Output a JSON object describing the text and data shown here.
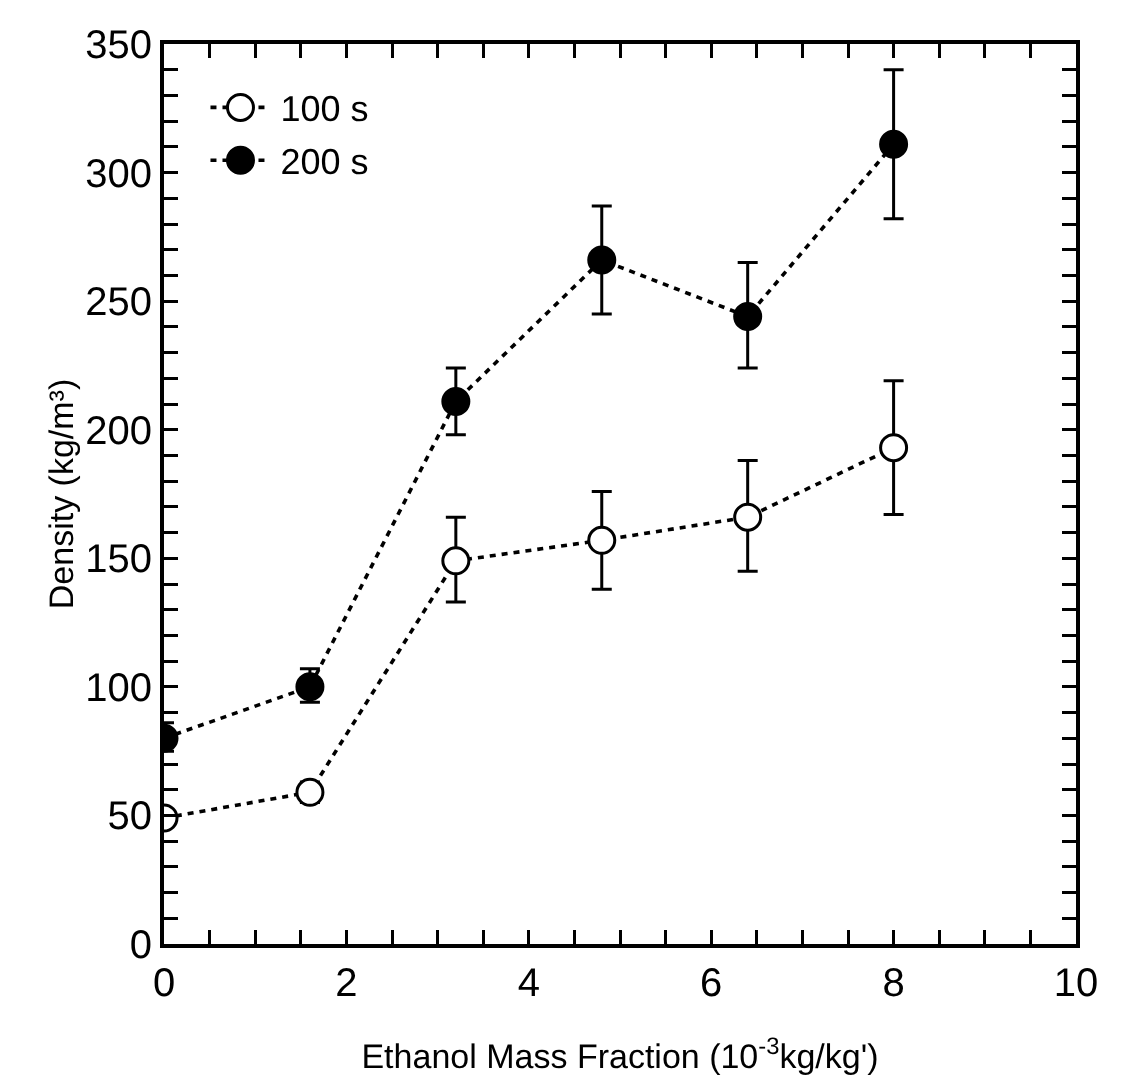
{
  "chart_data": {
    "type": "line",
    "xlabel": "Ethanol Mass Fraction (10$^{-3}$kg/kg')",
    "ylabel": "Density (kg/m³)",
    "x": [
      0,
      1.6,
      3.2,
      4.8,
      6.4,
      8
    ],
    "series": [
      {
        "name": "100 s",
        "color": "#ffffff",
        "values": [
          49,
          59,
          149,
          157,
          166,
          193
        ],
        "errors": [
          null,
          [
            55,
            63
          ],
          [
            133,
            166
          ],
          [
            138,
            176
          ],
          [
            145,
            188
          ],
          [
            167,
            219
          ]
        ]
      },
      {
        "name": "200 s",
        "color": "#000000",
        "values": [
          80,
          100,
          211,
          266,
          244,
          311
        ],
        "errors": [
          [
            75,
            86
          ],
          [
            94,
            107
          ],
          [
            198,
            224
          ],
          [
            245,
            287
          ],
          [
            224,
            265
          ],
          [
            282,
            340
          ]
        ]
      }
    ],
    "xlim": [
      0,
      10
    ],
    "ylim": [
      0,
      350
    ],
    "xticks": [
      0,
      {
        "value": 0.5,
        "label": null
      },
      2,
      {
        "value": 1,
        "label": null
      },
      {
        "value": 1.5,
        "label": null
      },
      {
        "value": 2.5,
        "label": null
      },
      {
        "value": 3,
        "label": null
      },
      {
        "value": 3.5,
        "label": null
      },
      4,
      {
        "value": 4.5,
        "label": null
      },
      {
        "value": 5,
        "label": null
      },
      {
        "value": 5.5,
        "label": null
      },
      6,
      {
        "value": 6.5,
        "label": null
      },
      {
        "value": 7,
        "label": null
      },
      {
        "value": 7.5,
        "label": null
      },
      8,
      {
        "value": 8.5,
        "label": null
      },
      {
        "value": 9,
        "label": null
      },
      {
        "value": 9.5,
        "label": null
      },
      10
    ],
    "yticks": [
      0,
      {
        "value": 10,
        "label": null
      },
      {
        "value": 20,
        "label": null
      },
      {
        "value": 30,
        "label": null
      },
      {
        "value": 40,
        "label": null
      },
      50,
      {
        "value": 60,
        "label": null
      },
      {
        "value": 70,
        "label": null
      },
      {
        "value": 80,
        "label": null
      },
      {
        "value": 90,
        "label": null
      },
      100,
      {
        "value": 110,
        "label": null
      },
      {
        "value": 120,
        "label": null
      },
      {
        "value": 130,
        "label": null
      },
      {
        "value": 140,
        "label": null
      },
      150,
      {
        "value": 160,
        "label": null
      },
      {
        "value": 170,
        "label": null
      },
      {
        "value": 180,
        "label": null
      },
      {
        "value": 190,
        "label": null
      },
      200,
      {
        "value": 210,
        "label": null
      },
      {
        "value": 220,
        "label": null
      },
      {
        "value": 230,
        "label": null
      },
      {
        "value": 240,
        "label": null
      },
      250,
      {
        "value": 260,
        "label": null
      },
      {
        "value": 270,
        "label": null
      },
      {
        "value": 280,
        "label": null
      },
      {
        "value": 290,
        "label": null
      },
      300,
      {
        "value": 310,
        "label": null
      },
      {
        "value": 320,
        "label": null
      },
      {
        "value": 330,
        "label": null
      },
      {
        "value": 340,
        "label": null
      },
      350
    ],
    "grid": false,
    "legend": "top left",
    "marker": "circle",
    "line_style": "dotted"
  }
}
